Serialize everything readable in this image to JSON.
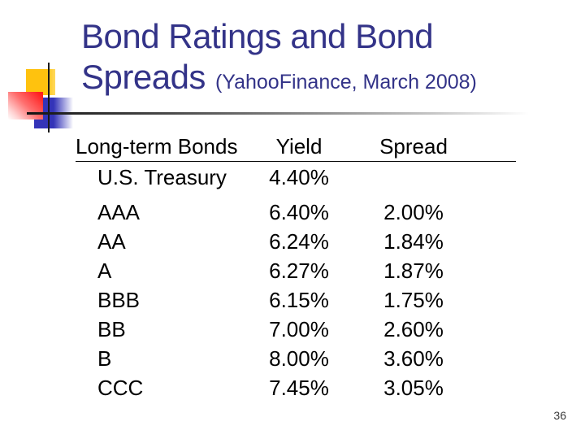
{
  "slide": {
    "title_line1": "Bond Ratings and Bond",
    "title_line2": "Spreads",
    "subtitle": "(YahooFinance, March 2008)",
    "page_number": "36"
  },
  "colors": {
    "title_text": "#333388",
    "accent_yellow": "#FFC20E",
    "accent_blue": "#3434B8",
    "accent_red": "#FF1F1F",
    "body_text": "#000000"
  },
  "table": {
    "headers": [
      "Long-term Bonds",
      "Yield",
      "Spread"
    ],
    "benchmark": {
      "label": "U.S. Treasury",
      "yield": "4.40%",
      "spread": ""
    },
    "rows": [
      {
        "rating": "AAA",
        "yield": "6.40%",
        "spread": "2.00%"
      },
      {
        "rating": "AA",
        "yield": "6.24%",
        "spread": "1.84%"
      },
      {
        "rating": "A",
        "yield": "6.27%",
        "spread": "1.87%"
      },
      {
        "rating": "BBB",
        "yield": "6.15%",
        "spread": "1.75%"
      },
      {
        "rating": "BB",
        "yield": "7.00%",
        "spread": "2.60%"
      },
      {
        "rating": "B",
        "yield": "8.00%",
        "spread": "3.60%"
      },
      {
        "rating": "CCC",
        "yield": "7.45%",
        "spread": "3.05%"
      }
    ]
  },
  "chart_data": {
    "type": "table",
    "title": "Bond Ratings and Bond Spreads (YahooFinance, March 2008)",
    "columns": [
      "Long-term Bonds",
      "Yield",
      "Spread"
    ],
    "categories": [
      "U.S. Treasury",
      "AAA",
      "AA",
      "A",
      "BBB",
      "BB",
      "B",
      "CCC"
    ],
    "series": [
      {
        "name": "Yield",
        "values": [
          4.4,
          6.4,
          6.24,
          6.27,
          6.15,
          7.0,
          8.0,
          7.45
        ]
      },
      {
        "name": "Spread",
        "values": [
          null,
          2.0,
          1.84,
          1.87,
          1.75,
          2.6,
          3.6,
          3.05
        ]
      }
    ],
    "units": "%"
  }
}
